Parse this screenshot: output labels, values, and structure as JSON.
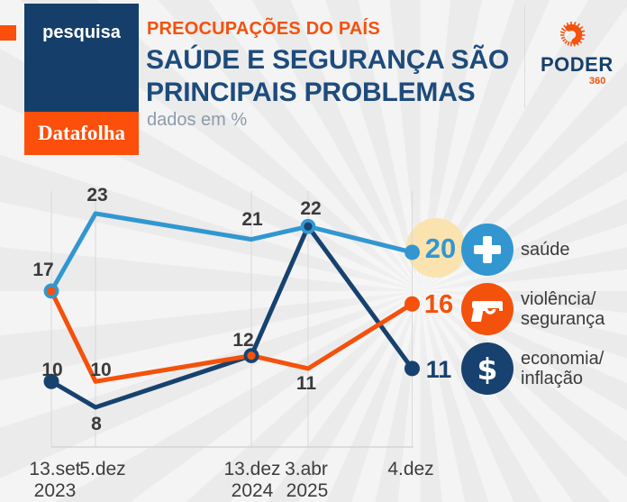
{
  "header": {
    "tab_label": "pesquisa",
    "brand_label": "Datafolha",
    "kicker": "PREOCUPAÇÕES DO PAÍS",
    "title_line1": "SAÚDE E SEGURANÇA SÃO",
    "title_line2": "PRINCIPAIS PROBLEMAS",
    "subtitle": "dados em %",
    "logo_text": "PODER",
    "logo_sub": "360"
  },
  "colors": {
    "health_blue": "#3297d1",
    "violence_orange": "#f4510c",
    "economy_navy": "#17426f",
    "highlight_yellow": "#fae3ae",
    "label_dark": "#3a3a3a",
    "axis_gray": "#d9d9d9",
    "tick_text": "#3d3d3d",
    "box_navy": "#153f6a",
    "box_orange": "#fb4f0b",
    "background": "#ebebeb"
  },
  "chart_data": {
    "type": "line",
    "title": "Preocupações do país",
    "subtitle": "Saúde e segurança são principais problemas",
    "unit": "%",
    "categories": [
      "13.set.2023",
      "5.dez.2023",
      "13.dez.2024",
      "3.abr.2025",
      "4.dez.2025"
    ],
    "x_tick_labels_row1": [
      "13.set",
      "5.dez",
      "13.dez",
      "3.abr",
      "4.dez"
    ],
    "x_tick_labels_row2": [
      "2023",
      "",
      "2024",
      "2025",
      ""
    ],
    "series": [
      {
        "name": "saúde",
        "color": "#3297d1",
        "values": [
          17,
          23,
          21,
          22,
          20
        ]
      },
      {
        "name": "violência/segurança",
        "color": "#f4510c",
        "values": [
          17,
          10,
          12,
          11,
          16
        ]
      },
      {
        "name": "economia/inflação",
        "color": "#17426f",
        "values": [
          10,
          8,
          12,
          22,
          11
        ]
      }
    ],
    "ylim": [
      0,
      25
    ],
    "grid": "vertical tick lines + bottom axis only",
    "legend_position": "right",
    "highlight": {
      "series": "saúde",
      "index": 4,
      "value": 20
    }
  },
  "legend": [
    {
      "icon": "plus-icon",
      "color": "#3297d1",
      "label_lines": [
        "saúde",
        ""
      ]
    },
    {
      "icon": "gun-icon",
      "color": "#f4510c",
      "label_lines": [
        "violência/",
        "segurança"
      ]
    },
    {
      "icon": "dollar-icon",
      "color": "#17426f",
      "label_lines": [
        "economia/",
        "inflação"
      ]
    }
  ]
}
